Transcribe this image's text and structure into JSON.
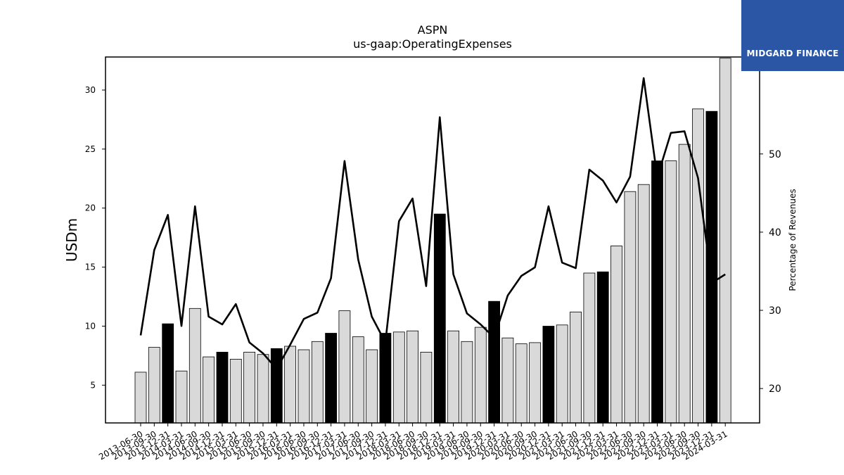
{
  "brand": {
    "name": "MIDGARD FINANCE",
    "bg_color": "#2b56a6"
  },
  "chart_data": {
    "type": "bar",
    "title": "ASPN",
    "subtitle": "us-gaap:OperatingExpenses",
    "ylabel": "USDm",
    "y2label": "Percentage of Revenues",
    "ylim": [
      1.8,
      32.8
    ],
    "y2lim": [
      15.6,
      62.4
    ],
    "yticks": [
      5,
      10,
      15,
      20,
      25,
      30
    ],
    "y2ticks": [
      20,
      30,
      40,
      50
    ],
    "bar_colors": {
      "q4": "#000000",
      "other": "#d9d9d9"
    },
    "line_color": "#000000",
    "categories": [
      "2013-06-30",
      "2013-09-30",
      "2013-12-31",
      "2014-03-31",
      "2014-06-30",
      "2014-09-30",
      "2014-12-31",
      "2015-03-31",
      "2015-06-30",
      "2015-09-30",
      "2015-12-31",
      "2016-03-31",
      "2016-06-30",
      "2016-09-30",
      "2016-12-31",
      "2017-03-31",
      "2017-06-30",
      "2017-09-30",
      "2017-12-31",
      "2018-03-31",
      "2018-06-30",
      "2018-09-30",
      "2018-12-31",
      "2019-03-31",
      "2019-06-30",
      "2019-09-30",
      "2019-12-31",
      "2020-03-31",
      "2020-06-30",
      "2020-09-30",
      "2020-12-31",
      "2021-03-31",
      "2021-06-30",
      "2021-09-30",
      "2021-12-31",
      "2022-03-31",
      "2022-06-30",
      "2022-09-30",
      "2022-12-31",
      "2023-03-31",
      "2023-06-30",
      "2023-09-30",
      "2023-12-31",
      "2024-03-31"
    ],
    "series": [
      {
        "values": [
          6.1,
          8.2,
          10.2,
          6.2,
          11.5,
          7.4,
          7.8,
          7.2,
          7.8,
          7.6,
          8.1,
          8.3,
          8.0,
          8.7,
          9.4,
          11.3,
          9.1,
          8.0,
          9.4,
          9.5,
          9.6,
          7.8,
          19.5,
          9.6,
          8.7,
          9.9,
          12.1,
          9.0,
          8.5,
          8.6,
          10.0,
          10.1,
          11.2,
          14.5,
          14.6,
          16.8,
          21.4,
          22.0,
          24.0,
          24.0,
          25.4,
          28.4,
          28.2,
          32.7
        ]
      },
      {
        "axis": "right",
        "values": [
          26.8,
          37.7,
          42.2,
          28.0,
          43.3,
          29.2,
          28.2,
          30.8,
          25.9,
          24.5,
          22.5,
          25.6,
          28.9,
          29.7,
          34.1,
          49.1,
          36.5,
          29.2,
          25.9,
          41.4,
          44.3,
          33.1,
          54.7,
          34.6,
          29.6,
          28.2,
          26.5,
          31.9,
          34.4,
          35.5,
          43.3,
          36.1,
          35.4,
          48.0,
          46.6,
          43.8,
          47.1,
          59.7,
          47.0,
          52.7,
          52.9,
          46.9,
          33.5,
          34.6
        ]
      }
    ]
  }
}
